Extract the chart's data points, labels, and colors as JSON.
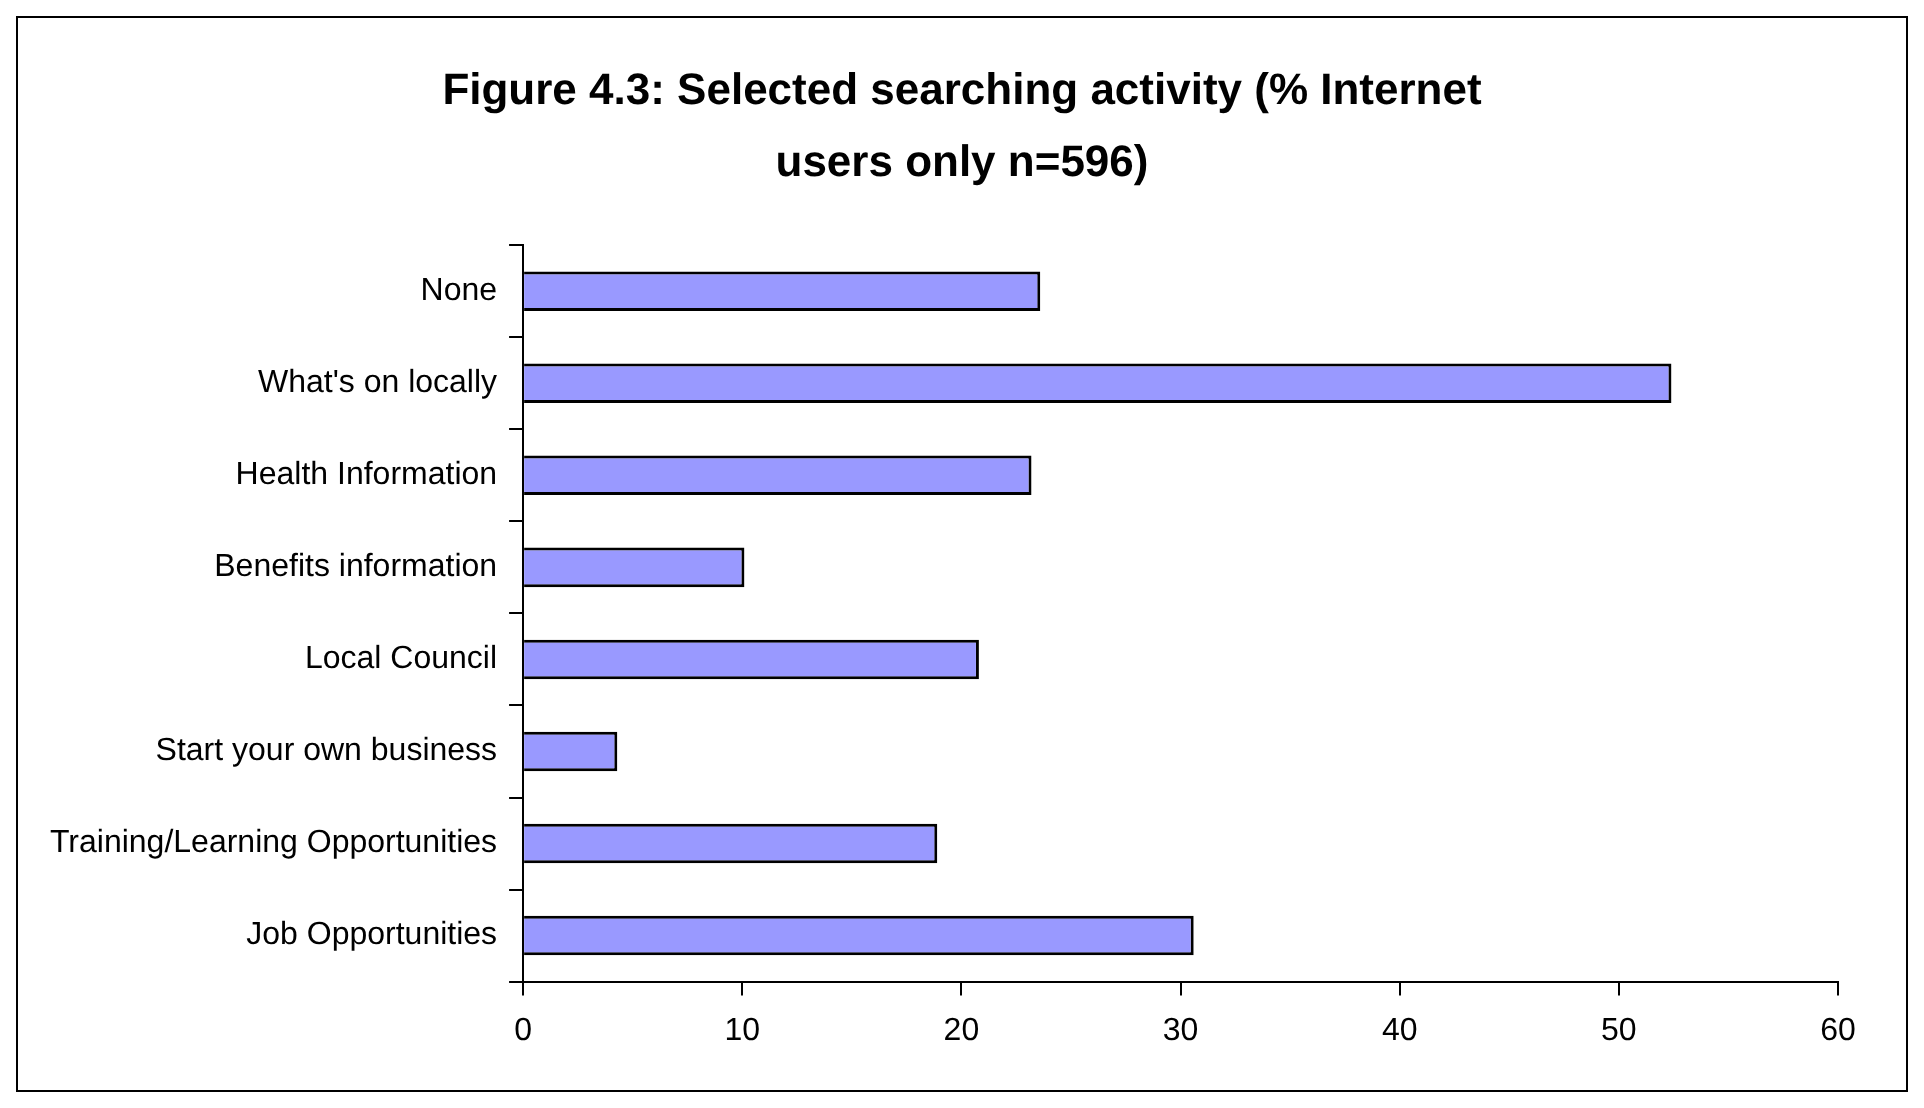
{
  "chart_data": {
    "type": "bar",
    "orientation": "horizontal",
    "title": "Figure 4.3: Selected searching activity (% Internet users only n=596)",
    "categories": [
      "None",
      "What's on locally",
      "Health Information",
      "Benefits information",
      "Local Council",
      "Start your own business",
      "Training/Learning Opportunities",
      "Job Opportunities"
    ],
    "values": [
      23.6,
      52.4,
      23.2,
      10.1,
      20.8,
      4.3,
      18.9,
      30.6
    ],
    "color": "#9999ff",
    "xlim": [
      0,
      60
    ],
    "xticks": [
      0,
      10,
      20,
      30,
      40,
      50,
      60
    ],
    "grid": false,
    "legend": false
  }
}
